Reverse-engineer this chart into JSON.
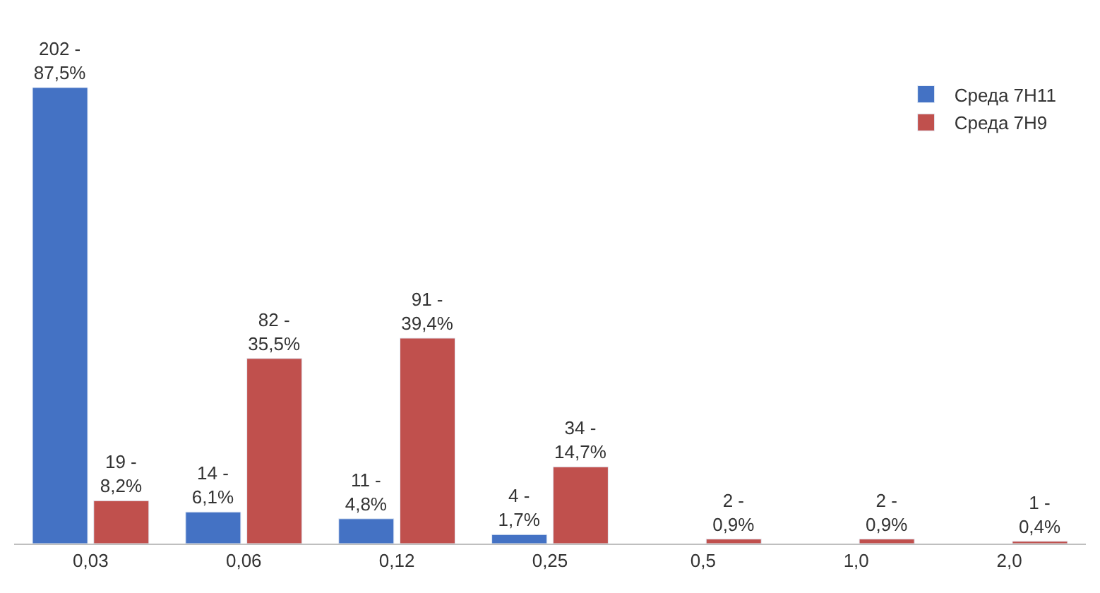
{
  "chart_data": {
    "type": "bar",
    "categories": [
      "0,03",
      "0,06",
      "0,12",
      "0,25",
      "0,5",
      "1,0",
      "2,0"
    ],
    "series": [
      {
        "name": "Среда 7H11",
        "color": "#4472c4",
        "values": [
          202,
          14,
          11,
          4,
          null,
          null,
          null
        ],
        "value_labels": [
          "202 -\n87,5%",
          "14 -\n6,1%",
          "11 -\n4,8%",
          "4 -\n1,7%",
          null,
          null,
          null
        ]
      },
      {
        "name": "Среда 7H9",
        "color": "#c0504d",
        "values": [
          19,
          82,
          91,
          34,
          2,
          2,
          1
        ],
        "value_labels": [
          "19 -\n8,2%",
          "82 -\n35,5%",
          "91 -\n39,4%",
          "34 -\n14,7%",
          "2 -\n0,9%",
          "2 -\n0,9%",
          "1 -\n0,4%"
        ]
      }
    ],
    "legend": "top right"
  }
}
